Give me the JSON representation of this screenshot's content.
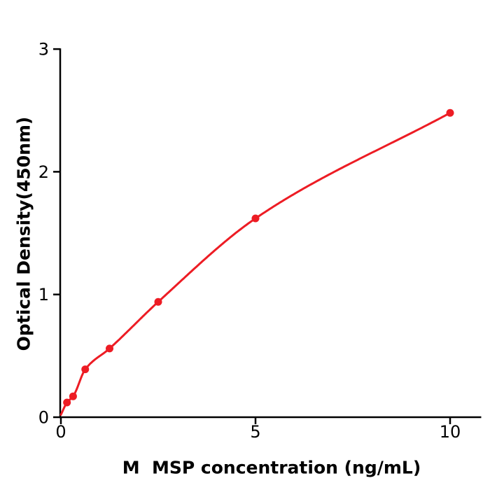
{
  "figure": {
    "background_color": "#ffffff",
    "axis_color": "#000000",
    "accent_red": "#ED1C24"
  },
  "chart_data": {
    "type": "scatter",
    "title": "",
    "xlabel": "M  MSP concentration (ng/mL)",
    "ylabel": "Optical Density(450nm)",
    "x": [
      0.156,
      0.313,
      0.625,
      1.25,
      2.5,
      5,
      10
    ],
    "y": [
      0.12,
      0.17,
      0.39,
      0.56,
      0.94,
      1.62,
      2.48
    ],
    "curve_start": {
      "x": 0,
      "y": 0.02
    },
    "xlim": [
      0,
      10.8
    ],
    "ylim": [
      0,
      3
    ],
    "x_ticks": [
      0,
      5,
      10
    ],
    "y_ticks": [
      0,
      1,
      2,
      3
    ],
    "grid": false,
    "legend": null,
    "marker": "circle",
    "line_color": "#ED1C24",
    "marker_color": "#ED1C24"
  }
}
